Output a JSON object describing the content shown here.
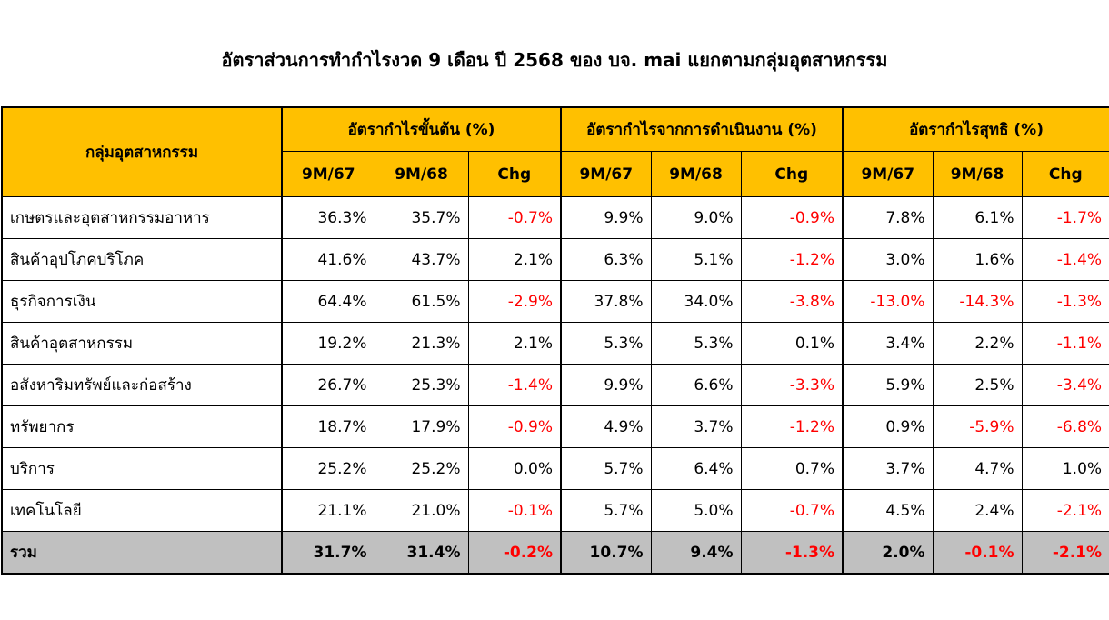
{
  "title": "อัตราส่วนการทำกำไรงวด 9 เดือน ปี 2568  ของ บจ. mai แยกตามกลุ่มอุตสาหกรรม",
  "header": {
    "group_col": "กลุ่มอุตสาหกรรม",
    "groups": [
      "อัตรากำไรขั้นต้น (%)",
      "อัตรากำไรจากการดำเนินงาน (%)",
      "อัตรากำไรสุทธิ (%)"
    ],
    "sub": [
      "9M/67",
      "9M/68",
      "Chg"
    ]
  },
  "rows": [
    {
      "name": "เกษตรและอุตสาหกรรมอาหาร",
      "vals": [
        "36.3%",
        "35.7%",
        "-0.7%",
        "9.9%",
        "9.0%",
        "-0.9%",
        "7.8%",
        "6.1%",
        "-1.7%"
      ]
    },
    {
      "name": "สินค้าอุปโภคบริโภค",
      "vals": [
        "41.6%",
        "43.7%",
        "2.1%",
        "6.3%",
        "5.1%",
        "-1.2%",
        "3.0%",
        "1.6%",
        "-1.4%"
      ]
    },
    {
      "name": "ธุรกิจการเงิน",
      "vals": [
        "64.4%",
        "61.5%",
        "-2.9%",
        "37.8%",
        "34.0%",
        "-3.8%",
        "-13.0%",
        "-14.3%",
        "-1.3%"
      ]
    },
    {
      "name": "สินค้าอุตสาหกรรม",
      "vals": [
        "19.2%",
        "21.3%",
        "2.1%",
        "5.3%",
        "5.3%",
        "0.1%",
        "3.4%",
        "2.2%",
        "-1.1%"
      ]
    },
    {
      "name": "อสังหาริมทรัพย์และก่อสร้าง",
      "vals": [
        "26.7%",
        "25.3%",
        "-1.4%",
        "9.9%",
        "6.6%",
        "-3.3%",
        "5.9%",
        "2.5%",
        "-3.4%"
      ]
    },
    {
      "name": "ทรัพยากร",
      "vals": [
        "18.7%",
        "17.9%",
        "-0.9%",
        "4.9%",
        "3.7%",
        "-1.2%",
        "0.9%",
        "-5.9%",
        "-6.8%"
      ]
    },
    {
      "name": "บริการ",
      "vals": [
        "25.2%",
        "25.2%",
        "0.0%",
        "5.7%",
        "6.4%",
        "0.7%",
        "3.7%",
        "4.7%",
        "1.0%"
      ]
    },
    {
      "name": "เทคโนโลยี",
      "vals": [
        "21.1%",
        "21.0%",
        "-0.1%",
        "5.7%",
        "5.0%",
        "-0.7%",
        "4.5%",
        "2.4%",
        "-2.1%"
      ]
    }
  ],
  "total": {
    "name": "รวม",
    "vals": [
      "31.7%",
      "31.4%",
      "-0.2%",
      "10.7%",
      "9.4%",
      "-1.3%",
      "2.0%",
      "-0.1%",
      "-2.1%"
    ]
  },
  "colors": {
    "header_bg": "#ffc000",
    "total_bg": "#c0c0c0",
    "negative": "#ff0000"
  }
}
